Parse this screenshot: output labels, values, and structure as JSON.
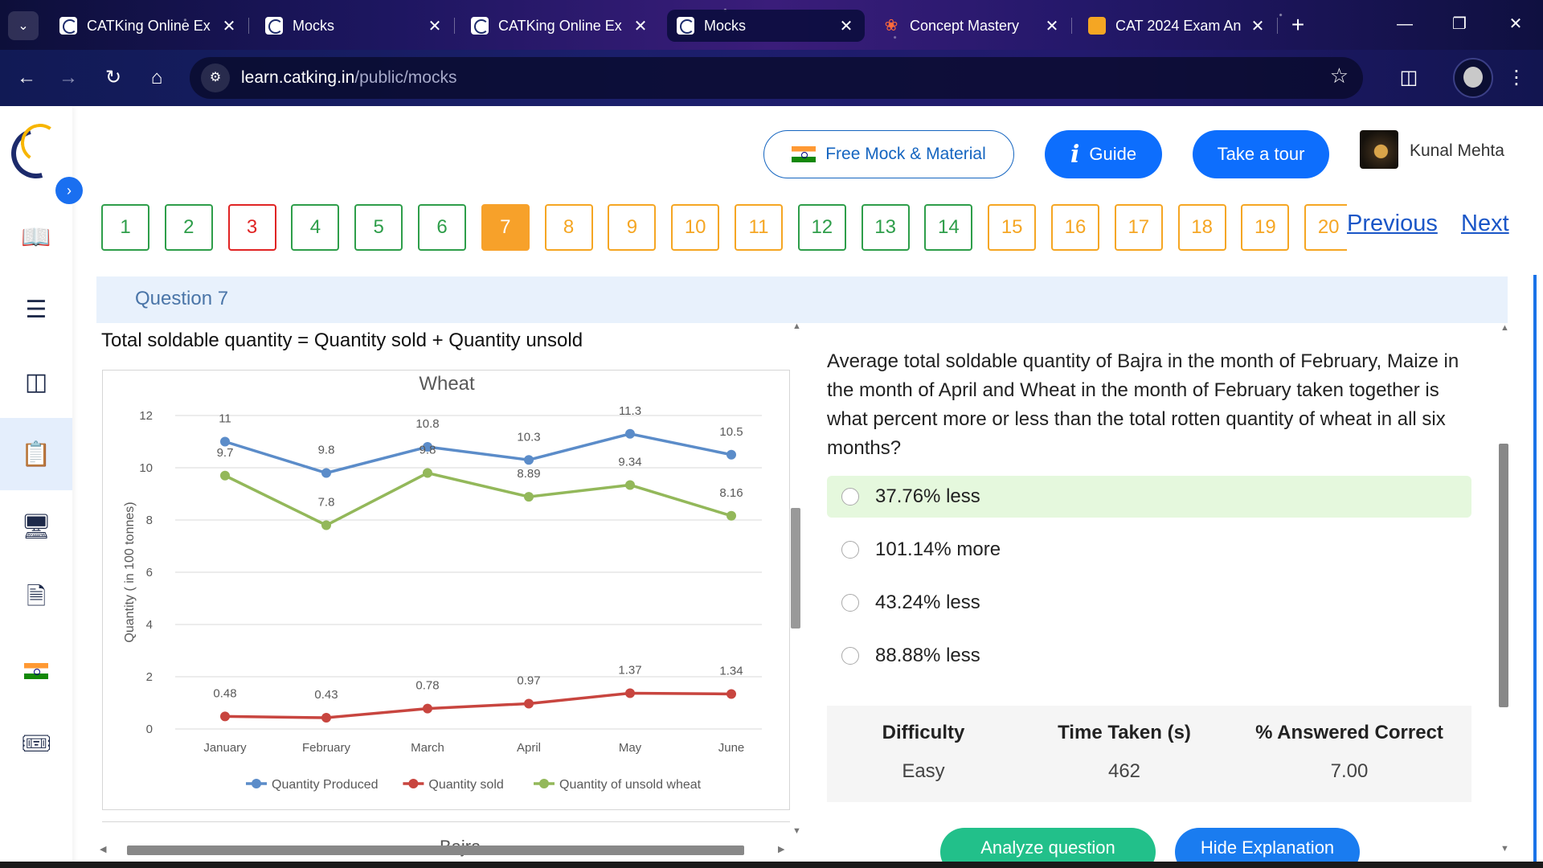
{
  "browser": {
    "tabs": [
      {
        "title": "CATKing Online Ex",
        "favicon": "catking-icon",
        "active": false
      },
      {
        "title": "Mocks",
        "favicon": "catking-icon",
        "active": false
      },
      {
        "title": "CATKing Online Ex",
        "favicon": "catking-icon",
        "active": false
      },
      {
        "title": "Mocks",
        "favicon": "catking-icon",
        "active": true
      },
      {
        "title": "Concept Mastery",
        "favicon": "concept-mastery-icon",
        "active": false
      },
      {
        "title": "CAT 2024 Exam An",
        "favicon": "cat2024-icon",
        "active": false
      }
    ],
    "url_host": "learn.catking.in",
    "url_path": "/public/mocks"
  },
  "header": {
    "free_mock_label": "Free Mock & Material",
    "guide_label": "Guide",
    "tour_label": "Take a tour",
    "user_name": "Kunal Mehta"
  },
  "question_nav": {
    "items": [
      {
        "n": "1",
        "status": "answered"
      },
      {
        "n": "2",
        "status": "answered"
      },
      {
        "n": "3",
        "status": "wrong"
      },
      {
        "n": "4",
        "status": "answered"
      },
      {
        "n": "5",
        "status": "answered"
      },
      {
        "n": "6",
        "status": "answered"
      },
      {
        "n": "7",
        "status": "current"
      },
      {
        "n": "8",
        "status": "skipped"
      },
      {
        "n": "9",
        "status": "skipped"
      },
      {
        "n": "10",
        "status": "skipped"
      },
      {
        "n": "11",
        "status": "skipped"
      },
      {
        "n": "12",
        "status": "answered"
      },
      {
        "n": "13",
        "status": "answered"
      },
      {
        "n": "14",
        "status": "answered"
      },
      {
        "n": "15",
        "status": "skipped"
      },
      {
        "n": "16",
        "status": "skipped"
      },
      {
        "n": "17",
        "status": "skipped"
      },
      {
        "n": "18",
        "status": "skipped"
      },
      {
        "n": "19",
        "status": "skipped"
      },
      {
        "n": "20",
        "status": "skipped"
      }
    ],
    "previous_label": "Previous",
    "next_label": "Next"
  },
  "question": {
    "title": "Question 7",
    "passage": "Total soldable quantity = Quantity sold + Quantity unsold",
    "text": "Average total soldable quantity of Bajra in the month of February, Maize in the month of April and Wheat in the month of February taken together is what percent more or less than the total rotten quantity of wheat in all six months?",
    "options": [
      {
        "label": "37.76% less",
        "correct": true
      },
      {
        "label": "101.14% more",
        "correct": false
      },
      {
        "label": "43.24% less",
        "correct": false
      },
      {
        "label": "88.88% less",
        "correct": false
      }
    ],
    "stats": {
      "difficulty_header": "Difficulty",
      "time_header": "Time Taken (s)",
      "correct_header": "% Answered Correct",
      "difficulty": "Easy",
      "time": "462",
      "correct": "7.00"
    },
    "analyze_label": "Analyze question",
    "hide_label": "Hide Explanation",
    "next_chart_title": "Bajra"
  },
  "chart_data": {
    "type": "line",
    "title": "Wheat",
    "ylabel": "Quantity ( in 100 tonnes)",
    "xlabel": "",
    "categories": [
      "January",
      "February",
      "March",
      "April",
      "May",
      "June"
    ],
    "ylim": [
      0,
      12
    ],
    "yticks": [
      0,
      2,
      4,
      6,
      8,
      10,
      12
    ],
    "grid": true,
    "legend": "bottom",
    "series": [
      {
        "name": "Quantity Produced",
        "color": "#5b8cc9",
        "values": [
          11,
          9.8,
          10.8,
          10.3,
          11.3,
          10.5
        ]
      },
      {
        "name": "Quantity sold",
        "color": "#c8453f",
        "values": [
          0.48,
          0.43,
          0.78,
          0.97,
          1.37,
          1.34
        ]
      },
      {
        "name": "Quantity of unsold wheat",
        "color": "#93b85a",
        "values": [
          9.7,
          7.8,
          9.8,
          8.89,
          9.34,
          8.16
        ]
      }
    ]
  }
}
